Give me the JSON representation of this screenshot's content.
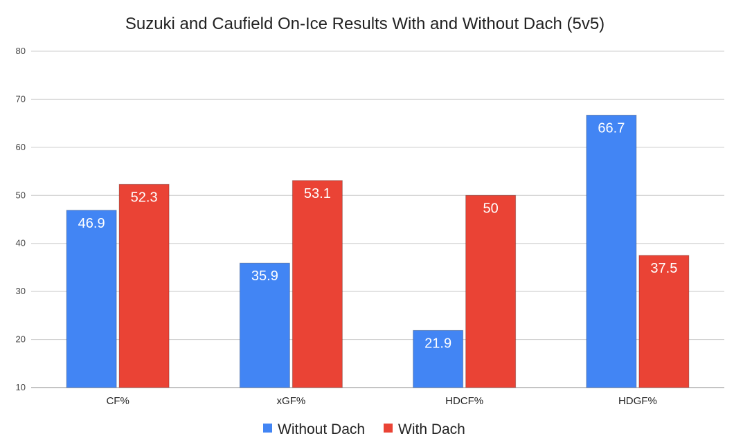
{
  "chart_data": {
    "type": "bar",
    "title": "Suzuki and Caufield On-Ice Results With and Without Dach (5v5)",
    "xlabel": "",
    "ylabel": "",
    "categories": [
      "CF%",
      "xGF%",
      "HDCF%",
      "HDGF%"
    ],
    "series": [
      {
        "name": "Without Dach",
        "color": "#4285f4",
        "values": [
          46.9,
          35.9,
          21.9,
          66.7
        ]
      },
      {
        "name": "With Dach",
        "color": "#ea4335",
        "values": [
          52.3,
          53.1,
          50,
          37.5
        ]
      }
    ],
    "ylim": [
      10,
      80
    ],
    "yticks": [
      10,
      20,
      30,
      40,
      50,
      60,
      70,
      80
    ],
    "grid": true,
    "legend": "bottom-center",
    "data_labels": true
  }
}
